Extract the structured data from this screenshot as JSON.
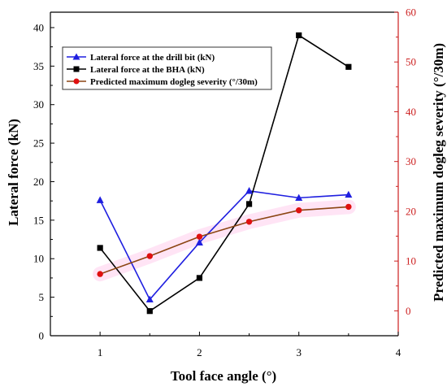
{
  "chart_data": {
    "type": "line",
    "x": [
      1,
      1.5,
      2,
      2.5,
      3,
      3.5
    ],
    "xlabel": "Tool face angle (°)",
    "xlim": [
      0.5,
      4
    ],
    "xticks": [
      1,
      2,
      3,
      4
    ],
    "ylabel_left": "Lateral force (kN)",
    "ylim_left": [
      0,
      42
    ],
    "yticks_left": [
      0,
      5,
      10,
      15,
      20,
      25,
      30,
      35,
      40
    ],
    "ylabel_right": "Predicted maximum dogleg severity (°/30m)",
    "ylim_right": [
      -5,
      60
    ],
    "yticks_right": [
      0,
      10,
      20,
      30,
      40,
      50,
      60
    ],
    "right_axis_color": "#cc1f1f",
    "legend_position": "top-left",
    "grid": false,
    "series": [
      {
        "name": "Lateral force at the drill bit (kN)",
        "axis": "left",
        "marker": "triangle",
        "color": "#1f1fe0",
        "values": [
          17.6,
          4.7,
          12.1,
          18.8,
          17.9,
          18.3
        ]
      },
      {
        "name": "Lateral force at the BHA (kN)",
        "axis": "left",
        "marker": "square",
        "color": "#000000",
        "values": [
          11.4,
          3.2,
          7.5,
          17.1,
          39.0,
          34.9
        ]
      },
      {
        "name": "Predicted maximum dogleg severity (°/30m)",
        "axis": "right",
        "marker": "circle",
        "color": "#e01010",
        "line_color": "#8b4513",
        "values": [
          7.4,
          11.0,
          14.9,
          17.9,
          20.2,
          20.9
        ]
      }
    ]
  }
}
